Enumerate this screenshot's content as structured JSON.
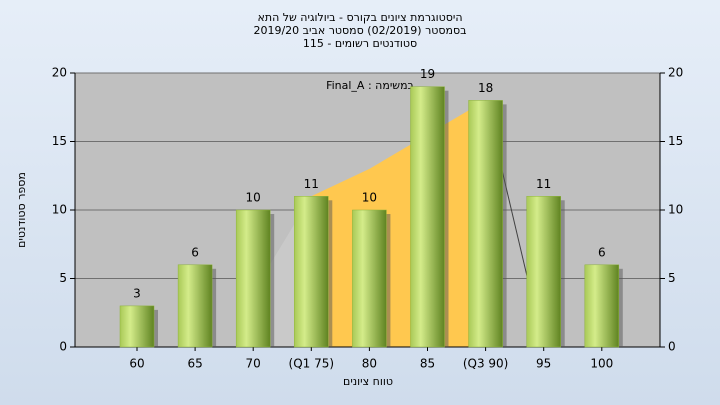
{
  "chart_data": {
    "type": "bar",
    "title_lines": [
      "היסטוגרמת ציונים בקורס - ביולוגיה של התא",
      "בסמסטר (02/2019)  סמסטר אביב 2019/20",
      "סטודנטים רשומים - 115"
    ],
    "annotation": "במשימה : Final_A",
    "x_label": "טווח ציונים",
    "y_label": "מספר סטודנטים",
    "categories": [
      "60",
      "65",
      "70",
      "(Q1 75)",
      "80",
      "85",
      "(Q3 90)",
      "95",
      "100"
    ],
    "values": [
      3,
      6,
      10,
      11,
      10,
      19,
      18,
      11,
      6
    ],
    "color": "#8db33a",
    "areas": [
      {
        "color": "#c9c9c9",
        "values": [
          null,
          null,
          4,
          11,
          null,
          null,
          null,
          null,
          null
        ]
      },
      {
        "color": "#ffc84f",
        "values": [
          null,
          null,
          null,
          11,
          13,
          15.5,
          18,
          null,
          null
        ]
      }
    ],
    "line": {
      "color": "#404040",
      "values": [
        null,
        null,
        null,
        null,
        null,
        null,
        18,
        0,
        null
      ]
    },
    "ylim": [
      0,
      20
    ],
    "yticks": [
      0,
      5,
      10,
      15,
      20
    ],
    "y2lim": [
      0,
      20
    ],
    "y2ticks": [
      0,
      5,
      10,
      15,
      20
    ],
    "grid": true
  }
}
